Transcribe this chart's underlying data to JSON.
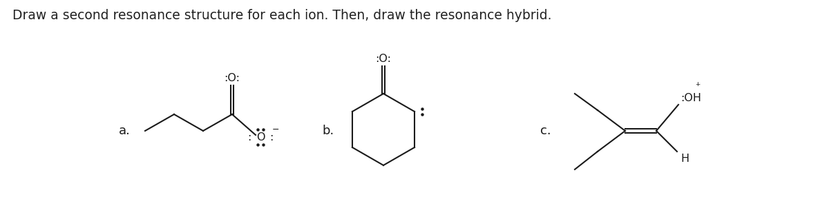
{
  "title": "Draw a second resonance structure for each ion. Then, draw the resonance hybrid.",
  "title_fontsize": 13.5,
  "title_color": "#222222",
  "bg_color": "#ffffff",
  "label_a": "a.",
  "label_b": "b.",
  "label_c": "c.",
  "label_fontsize": 13,
  "chem_color": "#1a1a1a",
  "dot_color": "#1a1a1a"
}
